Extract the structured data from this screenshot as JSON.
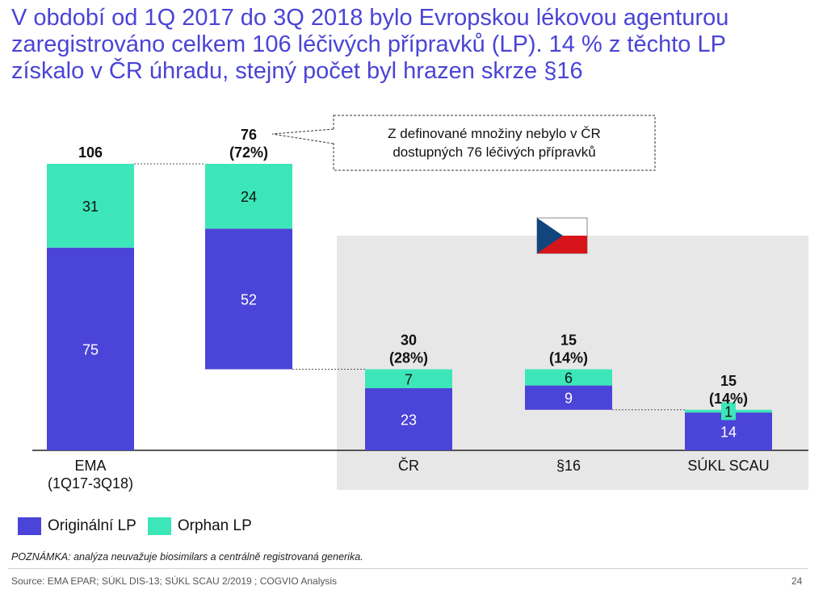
{
  "title_lines": [
    "V období od 1Q 2017 do 3Q 2018 bylo Evropskou lékovou agenturou",
    "zaregistrováno celkem 106 léčivých přípravků (LP). 14 % z těchto LP",
    "získalo v ČR úhradu, stejný počet byl hrazen skrze §16"
  ],
  "chart_data": {
    "type": "bar",
    "subtype": "stacked-waterfall",
    "categories": [
      "EMA\n(1Q17-3Q18)",
      "",
      "ČR",
      "§16",
      "SÚKL SCAU"
    ],
    "series": [
      {
        "name": "Originální LP",
        "values": [
          75,
          52,
          23,
          9,
          14
        ]
      },
      {
        "name": "Orphan LP",
        "values": [
          31,
          24,
          7,
          6,
          1
        ]
      }
    ],
    "baselines": [
      0,
      30,
      0,
      15,
      0
    ],
    "totals": [
      "106",
      "76\n(72%)",
      "30\n(28%)",
      "15\n(14%)",
      "15\n(14%)"
    ],
    "ylim": [
      0,
      106
    ],
    "callout": "Z definované množiny nebylo v ČR\ndostupných 76 léčivých přípravků",
    "highlight_group": "ČR",
    "colors": {
      "Originální LP": "#4b44d8",
      "Orphan LP": "#3de6b8",
      "highlight_bg": "#e7e7e7"
    }
  },
  "legend": [
    {
      "label": "Originální LP",
      "color": "#4b44d8"
    },
    {
      "label": "Orphan LP",
      "color": "#3de6b8"
    }
  ],
  "note": {
    "prefix": "POZNÁMKA:",
    "text": " analýza neuvažuje biosimilars a centrálně registrovaná generika."
  },
  "source": "Source: EMA EPAR; SÚKL DIS-13; SÚKL SCAU 2/2019 ; COGVIO Analysis",
  "page_number": "24"
}
